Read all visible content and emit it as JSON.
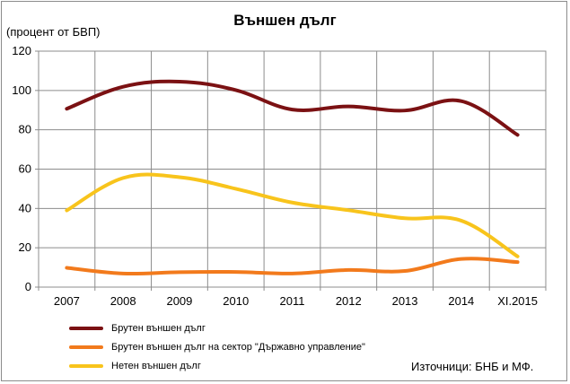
{
  "chart_data": {
    "type": "line",
    "title": "Външен дълг",
    "ylabel": "(процент от БВП)",
    "xlabel": "",
    "categories": [
      "2007",
      "2008",
      "2009",
      "2010",
      "2011",
      "2012",
      "2013",
      "2014",
      "XI.2015"
    ],
    "yticks": [
      "0",
      "20",
      "40",
      "60",
      "80",
      "100",
      "120"
    ],
    "ylim": [
      0,
      120
    ],
    "grid": true,
    "legend_position": "bottom-left",
    "series": [
      {
        "name": "Брутен външен дълг",
        "color": "#7b1113",
        "values": [
          90.7,
          101.9,
          104.5,
          100.2,
          90.3,
          91.9,
          89.8,
          94.6,
          77.4
        ]
      },
      {
        "name": "Брутен външен дълг на сектор \"Държавно управление\"",
        "color": "#f27a1c",
        "values": [
          9.8,
          6.9,
          7.6,
          7.7,
          6.9,
          8.7,
          8.2,
          14.3,
          12.7
        ]
      },
      {
        "name": "Нетен външен дълг",
        "color": "#f8c41c",
        "values": [
          39.0,
          55.5,
          55.9,
          50.0,
          43.0,
          39.1,
          35.0,
          33.8,
          15.6
        ]
      }
    ],
    "source": "Източници: БНБ и МФ."
  }
}
